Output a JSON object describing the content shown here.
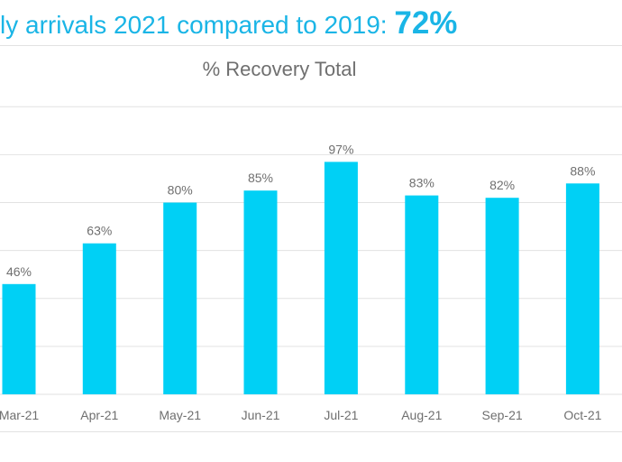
{
  "headline": {
    "text": "ly arrivals 2021 compared to 2019: ",
    "value": "72%"
  },
  "colors": {
    "accent": "#00d0f5",
    "headline": "#1ab5e6",
    "text": "#6f6f6f",
    "grid": "#e2e2e2"
  },
  "chart_data": {
    "type": "bar",
    "title": "% Recovery Total",
    "categories": [
      "Mar-21",
      "Apr-21",
      "May-21",
      "Jun-21",
      "Jul-21",
      "Aug-21",
      "Sep-21",
      "Oct-21"
    ],
    "values": [
      46,
      63,
      80,
      85,
      97,
      83,
      82,
      88
    ],
    "labels": [
      "46%",
      "63%",
      "80%",
      "85%",
      "97%",
      "83%",
      "82%",
      "88%"
    ],
    "xlabel": "",
    "ylabel": "",
    "ylim": [
      0,
      120
    ],
    "grid": true,
    "legend": "none"
  }
}
